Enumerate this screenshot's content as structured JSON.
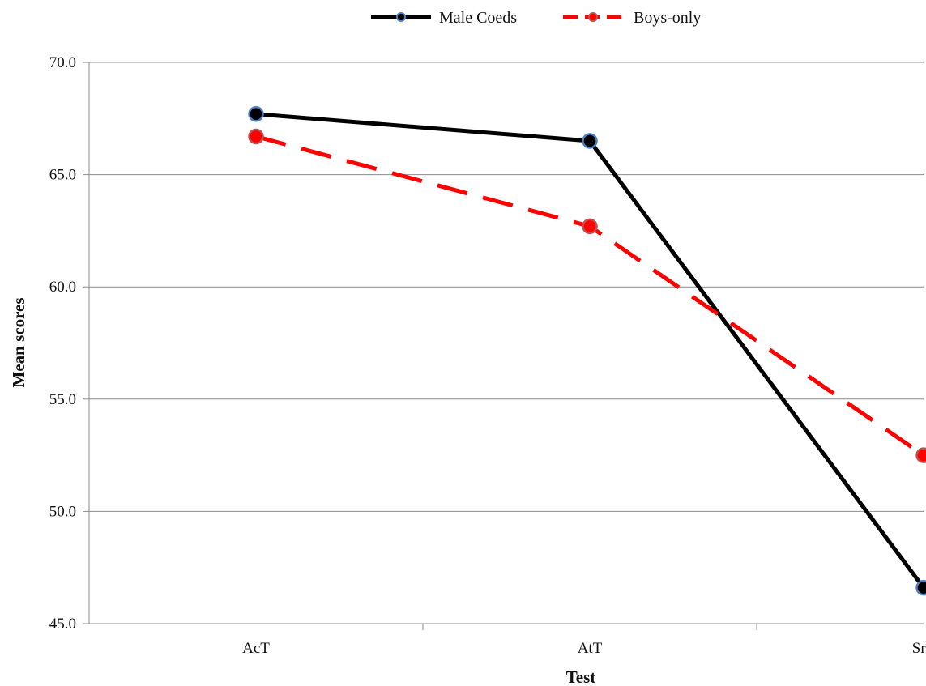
{
  "chart_data": {
    "type": "line",
    "title": "",
    "xlabel": "Test",
    "ylabel": "Mean scores",
    "categories": [
      "AcT",
      "AtT",
      "SrT"
    ],
    "ylim": [
      45,
      70
    ],
    "yticks": [
      45,
      50,
      55,
      60,
      65,
      70
    ],
    "ytick_format": "one-decimal",
    "grid": "horizontal",
    "legend_position": "top-center",
    "series": [
      {
        "name": "Male Coeds",
        "values": [
          67.7,
          66.5,
          46.6
        ],
        "color": "#000000",
        "marker_edge_color": "#4f7fbf",
        "line_style": "solid"
      },
      {
        "name": "Boys-only",
        "values": [
          66.7,
          62.7,
          52.5
        ],
        "color": "#ff0000",
        "marker_edge_color": "#c0504d",
        "line_style": "dashed"
      }
    ]
  }
}
